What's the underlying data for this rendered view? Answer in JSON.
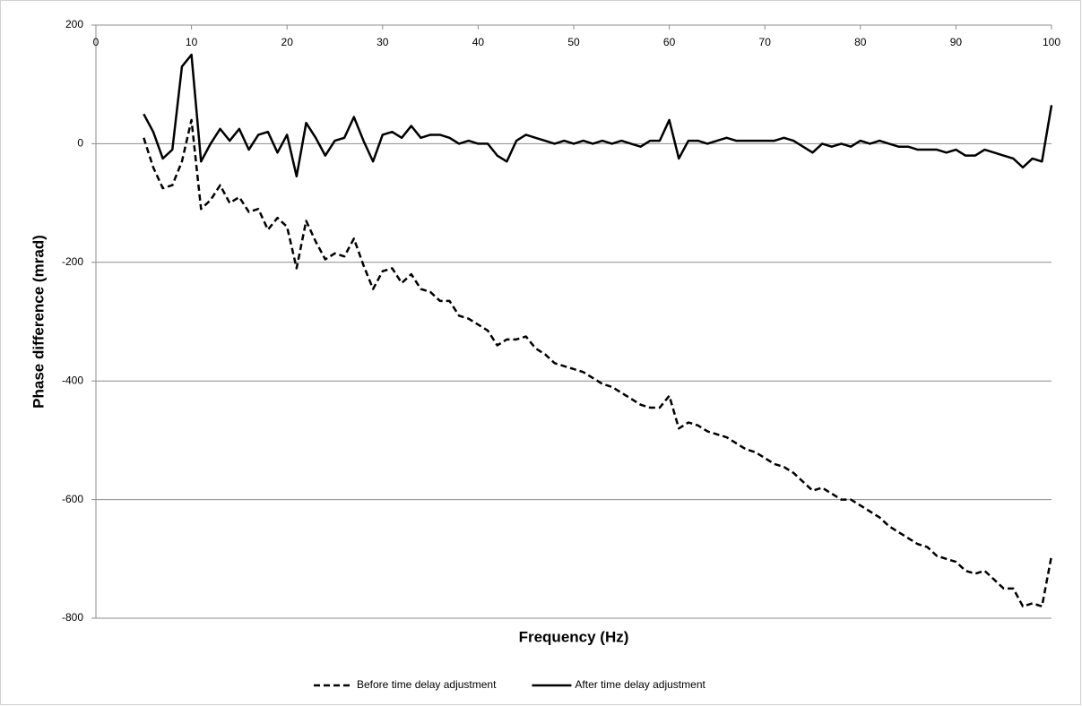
{
  "chart_data": {
    "type": "line",
    "x_label": "Frequency (Hz)",
    "y_label": "Phase difference (mrad)",
    "x": [
      5,
      6,
      7,
      8,
      9,
      10,
      11,
      12,
      13,
      14,
      15,
      16,
      17,
      18,
      19,
      20,
      21,
      22,
      23,
      24,
      25,
      26,
      27,
      28,
      29,
      30,
      31,
      32,
      33,
      34,
      35,
      36,
      37,
      38,
      39,
      40,
      41,
      42,
      43,
      44,
      45,
      46,
      47,
      48,
      49,
      50,
      51,
      52,
      53,
      54,
      55,
      56,
      57,
      58,
      59,
      60,
      61,
      62,
      63,
      64,
      65,
      66,
      67,
      68,
      69,
      70,
      71,
      72,
      73,
      74,
      75,
      76,
      77,
      78,
      79,
      80,
      81,
      82,
      83,
      84,
      85,
      86,
      87,
      88,
      89,
      90,
      91,
      92,
      93,
      94,
      95,
      96,
      97,
      98,
      99,
      100
    ],
    "series": [
      {
        "name": "Before time delay adjustment",
        "color": "#000000",
        "style": "dashed",
        "values": [
          10,
          -40,
          -75,
          -70,
          -30,
          40,
          -110,
          -95,
          -70,
          -100,
          -90,
          -115,
          -110,
          -145,
          -125,
          -140,
          -210,
          -130,
          -165,
          -195,
          -185,
          -190,
          -160,
          -205,
          -245,
          -215,
          -210,
          -235,
          -220,
          -245,
          -250,
          -265,
          -265,
          -290,
          -295,
          -305,
          -315,
          -340,
          -330,
          -330,
          -325,
          -345,
          -355,
          -370,
          -375,
          -380,
          -385,
          -395,
          -405,
          -410,
          -420,
          -430,
          -440,
          -445,
          -445,
          -425,
          -480,
          -470,
          -475,
          -485,
          -490,
          -495,
          -505,
          -515,
          -520,
          -530,
          -540,
          -545,
          -555,
          -570,
          -585,
          -580,
          -590,
          -600,
          -600,
          -610,
          -620,
          -630,
          -645,
          -655,
          -665,
          -675,
          -680,
          -695,
          -700,
          -705,
          -720,
          -725,
          -720,
          -735,
          -750,
          -750,
          -780,
          -775,
          -780,
          -695
        ]
      },
      {
        "name": "After time delay adjustment",
        "color": "#000000",
        "style": "solid",
        "values": [
          50,
          20,
          -25,
          -10,
          130,
          150,
          -30,
          0,
          25,
          5,
          25,
          -10,
          15,
          20,
          -15,
          15,
          -55,
          35,
          10,
          -20,
          5,
          10,
          45,
          5,
          -30,
          15,
          20,
          10,
          30,
          10,
          15,
          15,
          10,
          0,
          5,
          0,
          0,
          -20,
          -30,
          5,
          15,
          10,
          5,
          0,
          5,
          0,
          5,
          0,
          5,
          0,
          5,
          0,
          -5,
          5,
          5,
          40,
          -25,
          5,
          5,
          0,
          5,
          10,
          5,
          5,
          5,
          5,
          5,
          10,
          5,
          -5,
          -15,
          0,
          -5,
          0,
          -5,
          5,
          0,
          5,
          0,
          -5,
          -5,
          -10,
          -10,
          -10,
          -15,
          -10,
          -20,
          -20,
          -10,
          -15,
          -20,
          -25,
          -40,
          -25,
          -30,
          65
        ]
      }
    ],
    "xlim": [
      0,
      100
    ],
    "xticks": [
      0,
      10,
      20,
      30,
      40,
      50,
      60,
      70,
      80,
      90,
      100
    ],
    "ylim": [
      -800,
      200
    ],
    "yticks": [
      -800,
      -600,
      -400,
      -200,
      0,
      200
    ],
    "grid": true,
    "legend": "bottom"
  }
}
